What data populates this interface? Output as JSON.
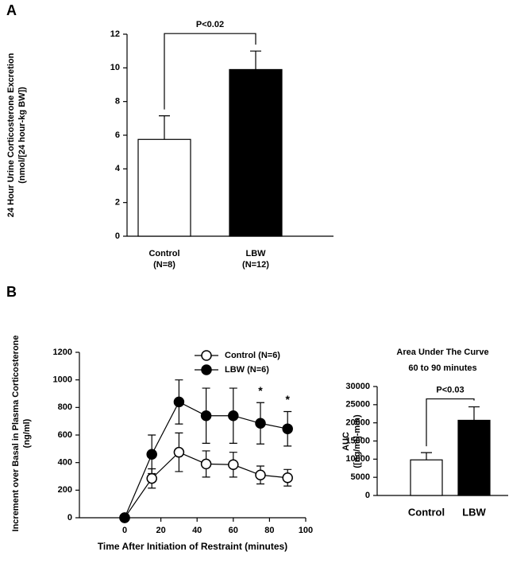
{
  "chart_data": [
    {
      "type": "bar",
      "panel": "A",
      "ylabel": [
        "24 Hour Urine Corticosterone Excretion",
        "(nmol/[24 hour-kg BW])"
      ],
      "categories": [
        "Control",
        "LBW"
      ],
      "group_sizes": [
        "(N=8)",
        "(N=12)"
      ],
      "values": [
        5.75,
        9.9
      ],
      "errors": [
        1.4,
        1.1
      ],
      "colors": [
        "#ffffff",
        "#000000"
      ],
      "ylim": [
        0,
        12
      ],
      "yticks": [
        0,
        2,
        4,
        6,
        8,
        10,
        12
      ],
      "p_value": "P<0.02"
    },
    {
      "type": "line",
      "panel": "B",
      "ylabel": [
        "Increment over Basal in Plasma Corticosterone",
        "(ng/ml)"
      ],
      "xlabel": "Time After Initiation of Restraint (minutes)",
      "x": [
        0,
        15,
        30,
        45,
        60,
        75,
        90
      ],
      "series": [
        {
          "name": "Control (N=6)",
          "color": "#ffffff",
          "values": [
            0,
            285,
            475,
            390,
            385,
            310,
            290
          ],
          "errors": [
            0,
            70,
            140,
            95,
            90,
            65,
            60
          ]
        },
        {
          "name": "LBW  (N=6)",
          "color": "#000000",
          "values": [
            0,
            460,
            840,
            740,
            740,
            685,
            645
          ],
          "errors": [
            0,
            140,
            160,
            200,
            200,
            150,
            125
          ]
        }
      ],
      "xlim": [
        -25,
        100
      ],
      "xticks": [
        0,
        20,
        40,
        60,
        80,
        100
      ],
      "ylim": [
        0,
        1200
      ],
      "yticks": [
        0,
        200,
        400,
        600,
        800,
        1000,
        1200
      ],
      "significant_x": [
        75,
        90
      ],
      "significance_label": "*"
    },
    {
      "type": "bar",
      "title": "Area Under The Curve",
      "subtitle": "60 to 90 minutes",
      "ylabel": [
        "AUC",
        "([ng/ml]-min)"
      ],
      "categories": [
        "Control",
        "LBW"
      ],
      "values": [
        9800,
        20700
      ],
      "errors": [
        2000,
        3700
      ],
      "colors": [
        "#ffffff",
        "#000000"
      ],
      "ylim": [
        0,
        30000
      ],
      "yticks": [
        0,
        5000,
        10000,
        15000,
        20000,
        25000,
        30000
      ],
      "p_value": "P<0.03"
    }
  ]
}
